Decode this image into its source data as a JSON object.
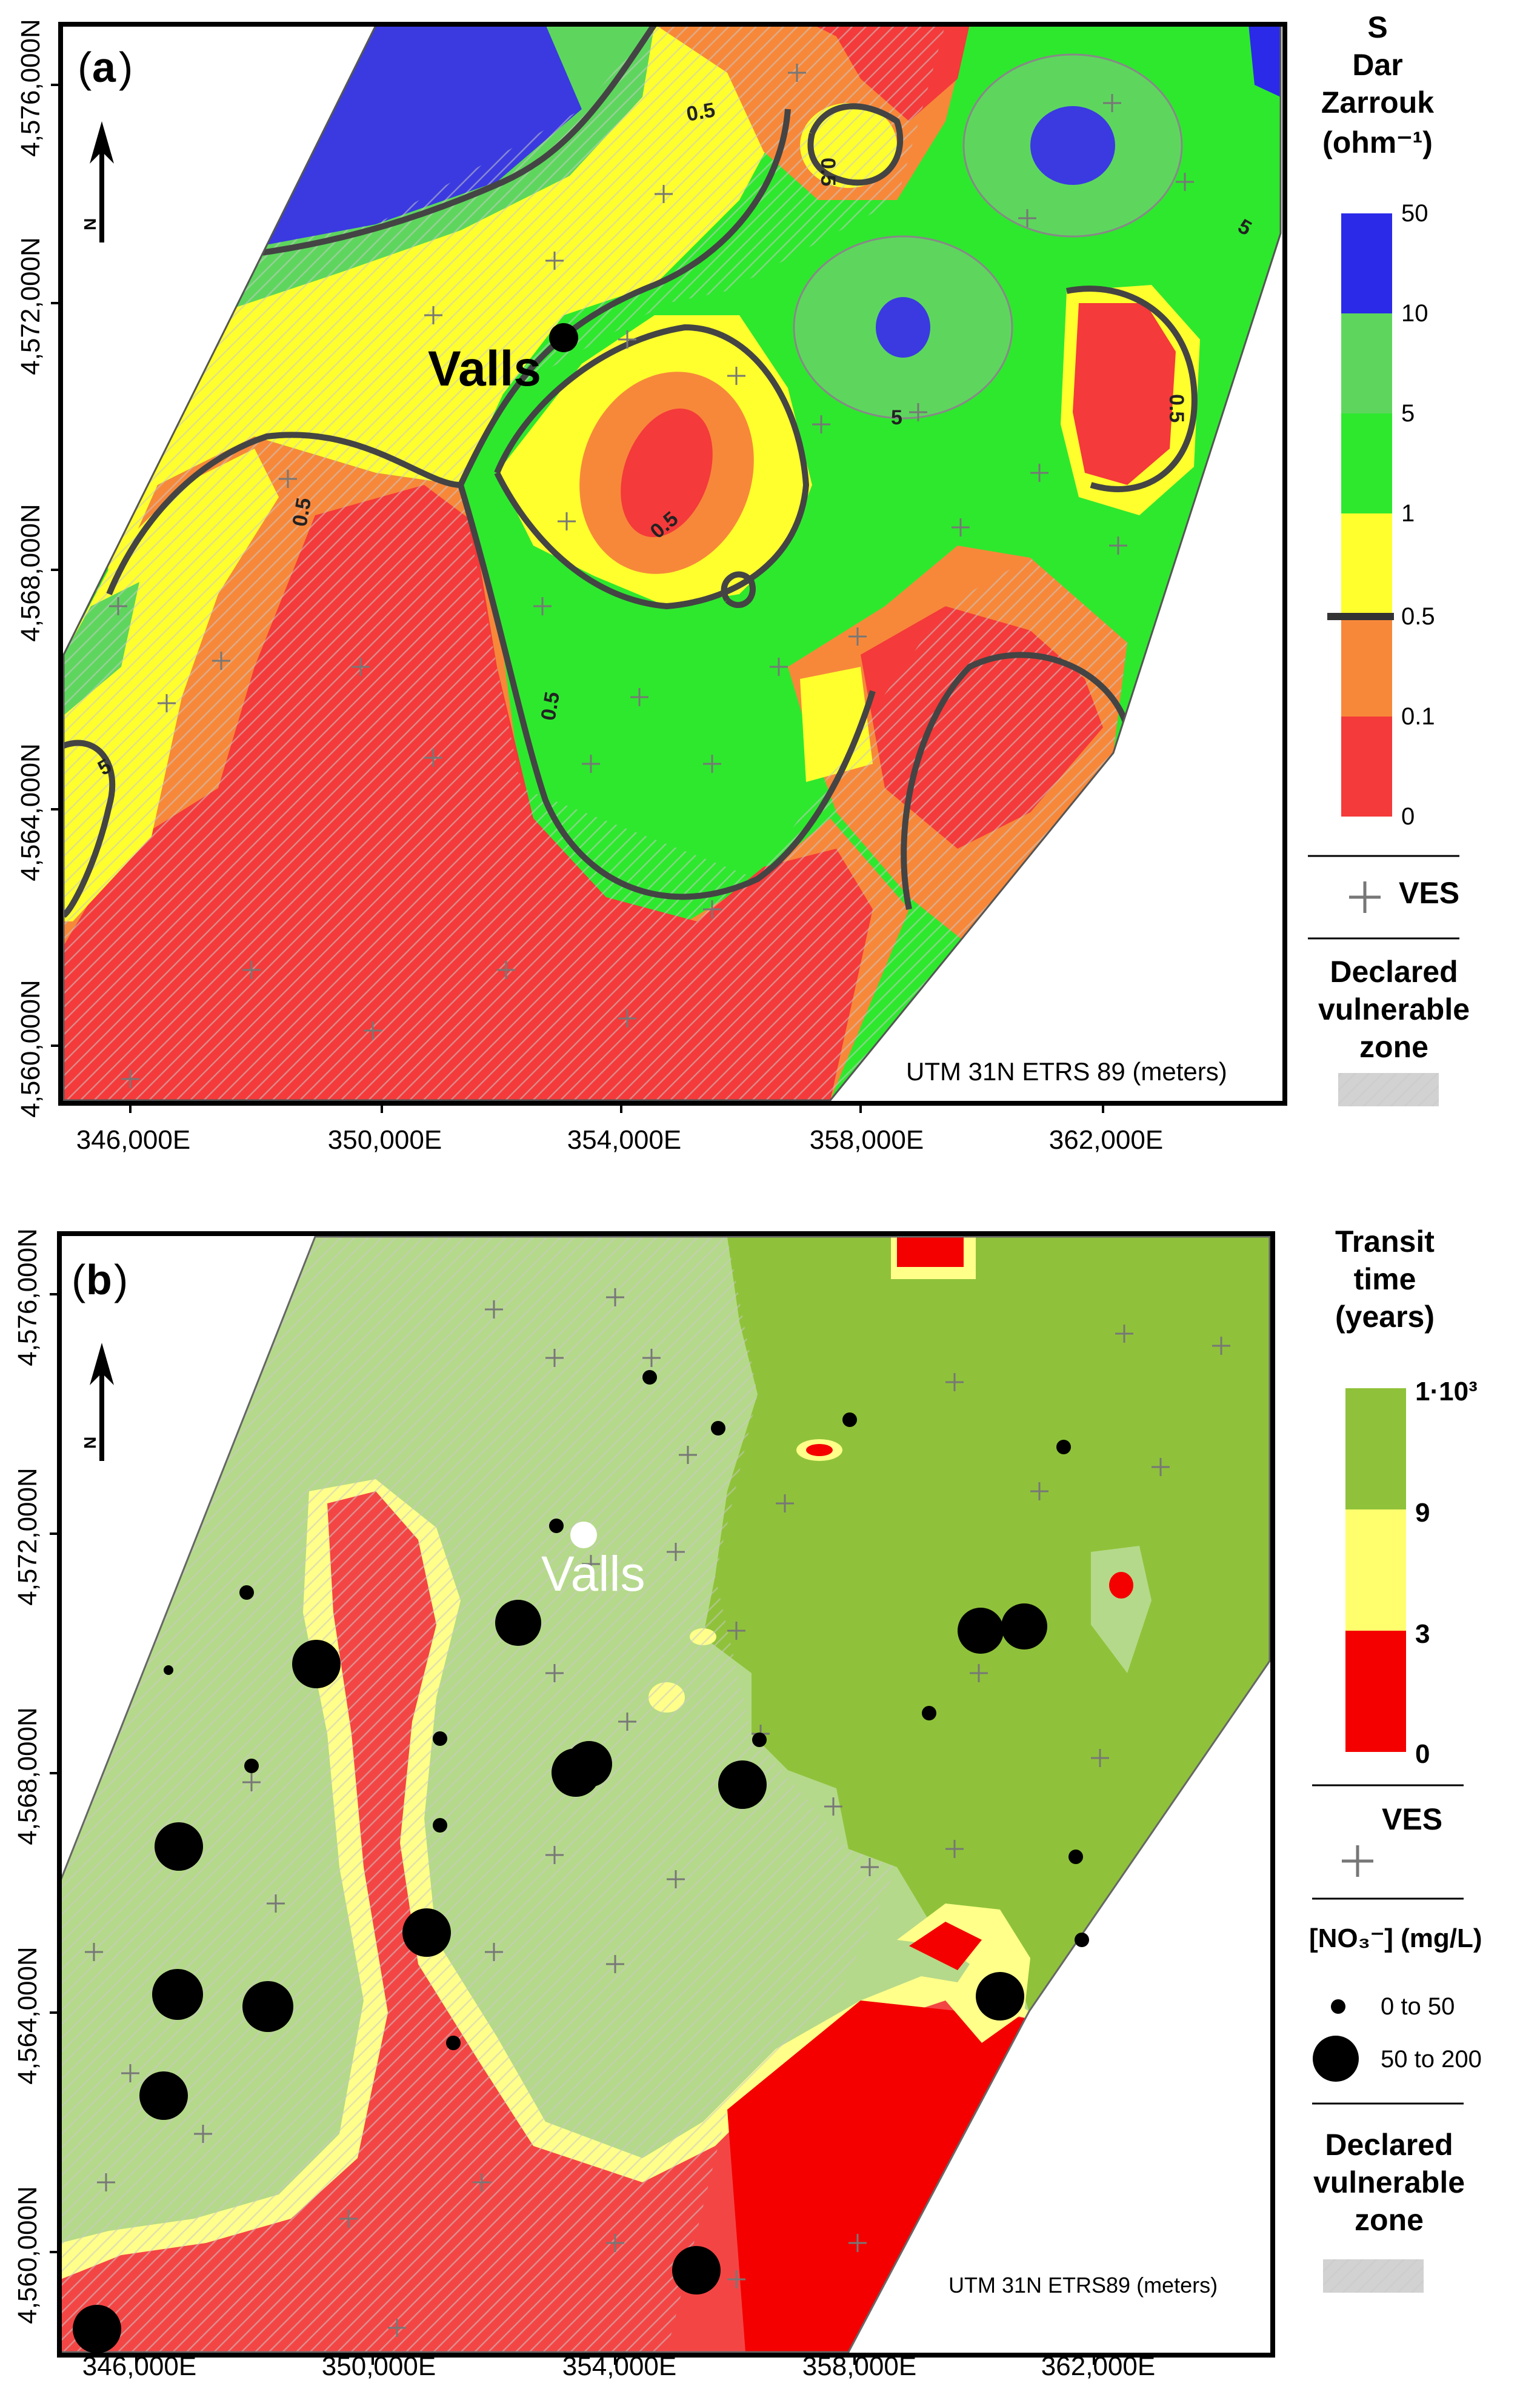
{
  "panel_a": {
    "letter_open": "(",
    "letter": "a",
    "letter_close": ")",
    "north_label": "N",
    "place_label": "Valls",
    "crs_label": "UTM 31N ETRS 89 (meters)",
    "contour_labels": [
      "0.5",
      "0.5",
      "0.5",
      "0.5",
      "0.5",
      "0.5",
      "5",
      "5",
      "5"
    ],
    "y_ticks": [
      "4,576,000N",
      "4,572,000N",
      "4,568,000N",
      "4,564,000N",
      "4,560,000N"
    ],
    "x_ticks": [
      "346,000E",
      "350,000E",
      "354,000E",
      "358,000E",
      "362,000E"
    ],
    "legend": {
      "title_lines": [
        "S",
        "Dar",
        "Zarrouk",
        "(ohm⁻¹)"
      ],
      "bins": [
        {
          "label": "50",
          "color": "#2a2ae8"
        },
        {
          "label": "10",
          "color": "#5ed65e"
        },
        {
          "label": "5",
          "color": "#2ee82e"
        },
        {
          "label": "1",
          "color": "#ffff2e"
        },
        {
          "label": "0.5",
          "color": "#f7883a"
        },
        {
          "label": "0.1",
          "color": "#f43a3a"
        },
        {
          "label": "0",
          "color": ""
        }
      ],
      "ves_label": "VES",
      "zone_lines": [
        "Declared",
        "vulnerable",
        "zone"
      ]
    }
  },
  "panel_b": {
    "letter_open": "(",
    "letter": "b",
    "letter_close": ")",
    "north_label": "N",
    "place_label": "Valls",
    "crs_label": "UTM 31N ETRS89 (meters)",
    "y_ticks": [
      "4,576,000N",
      "4,572,000N",
      "4,568,000N",
      "4,564,000N",
      "4,560,000N"
    ],
    "x_ticks": [
      "346,000E",
      "350,000E",
      "354,000E",
      "358,000E",
      "362,000E"
    ],
    "legend": {
      "title_lines": [
        "Transit",
        "time",
        "(years)"
      ],
      "bins": [
        {
          "label": "1·10³",
          "color": "#8fc23a"
        },
        {
          "label": "9",
          "color": "#ffff6e"
        },
        {
          "label": "3",
          "color": "#f40000"
        },
        {
          "label": "0",
          "color": ""
        }
      ],
      "ves_label": "VES",
      "nitrate_title": "[NO₃⁻] (mg/L)",
      "nitrate_small": "0  to  50",
      "nitrate_large": "50  to  200",
      "zone_lines": [
        "Declared",
        "vulnerable",
        "zone"
      ]
    }
  }
}
